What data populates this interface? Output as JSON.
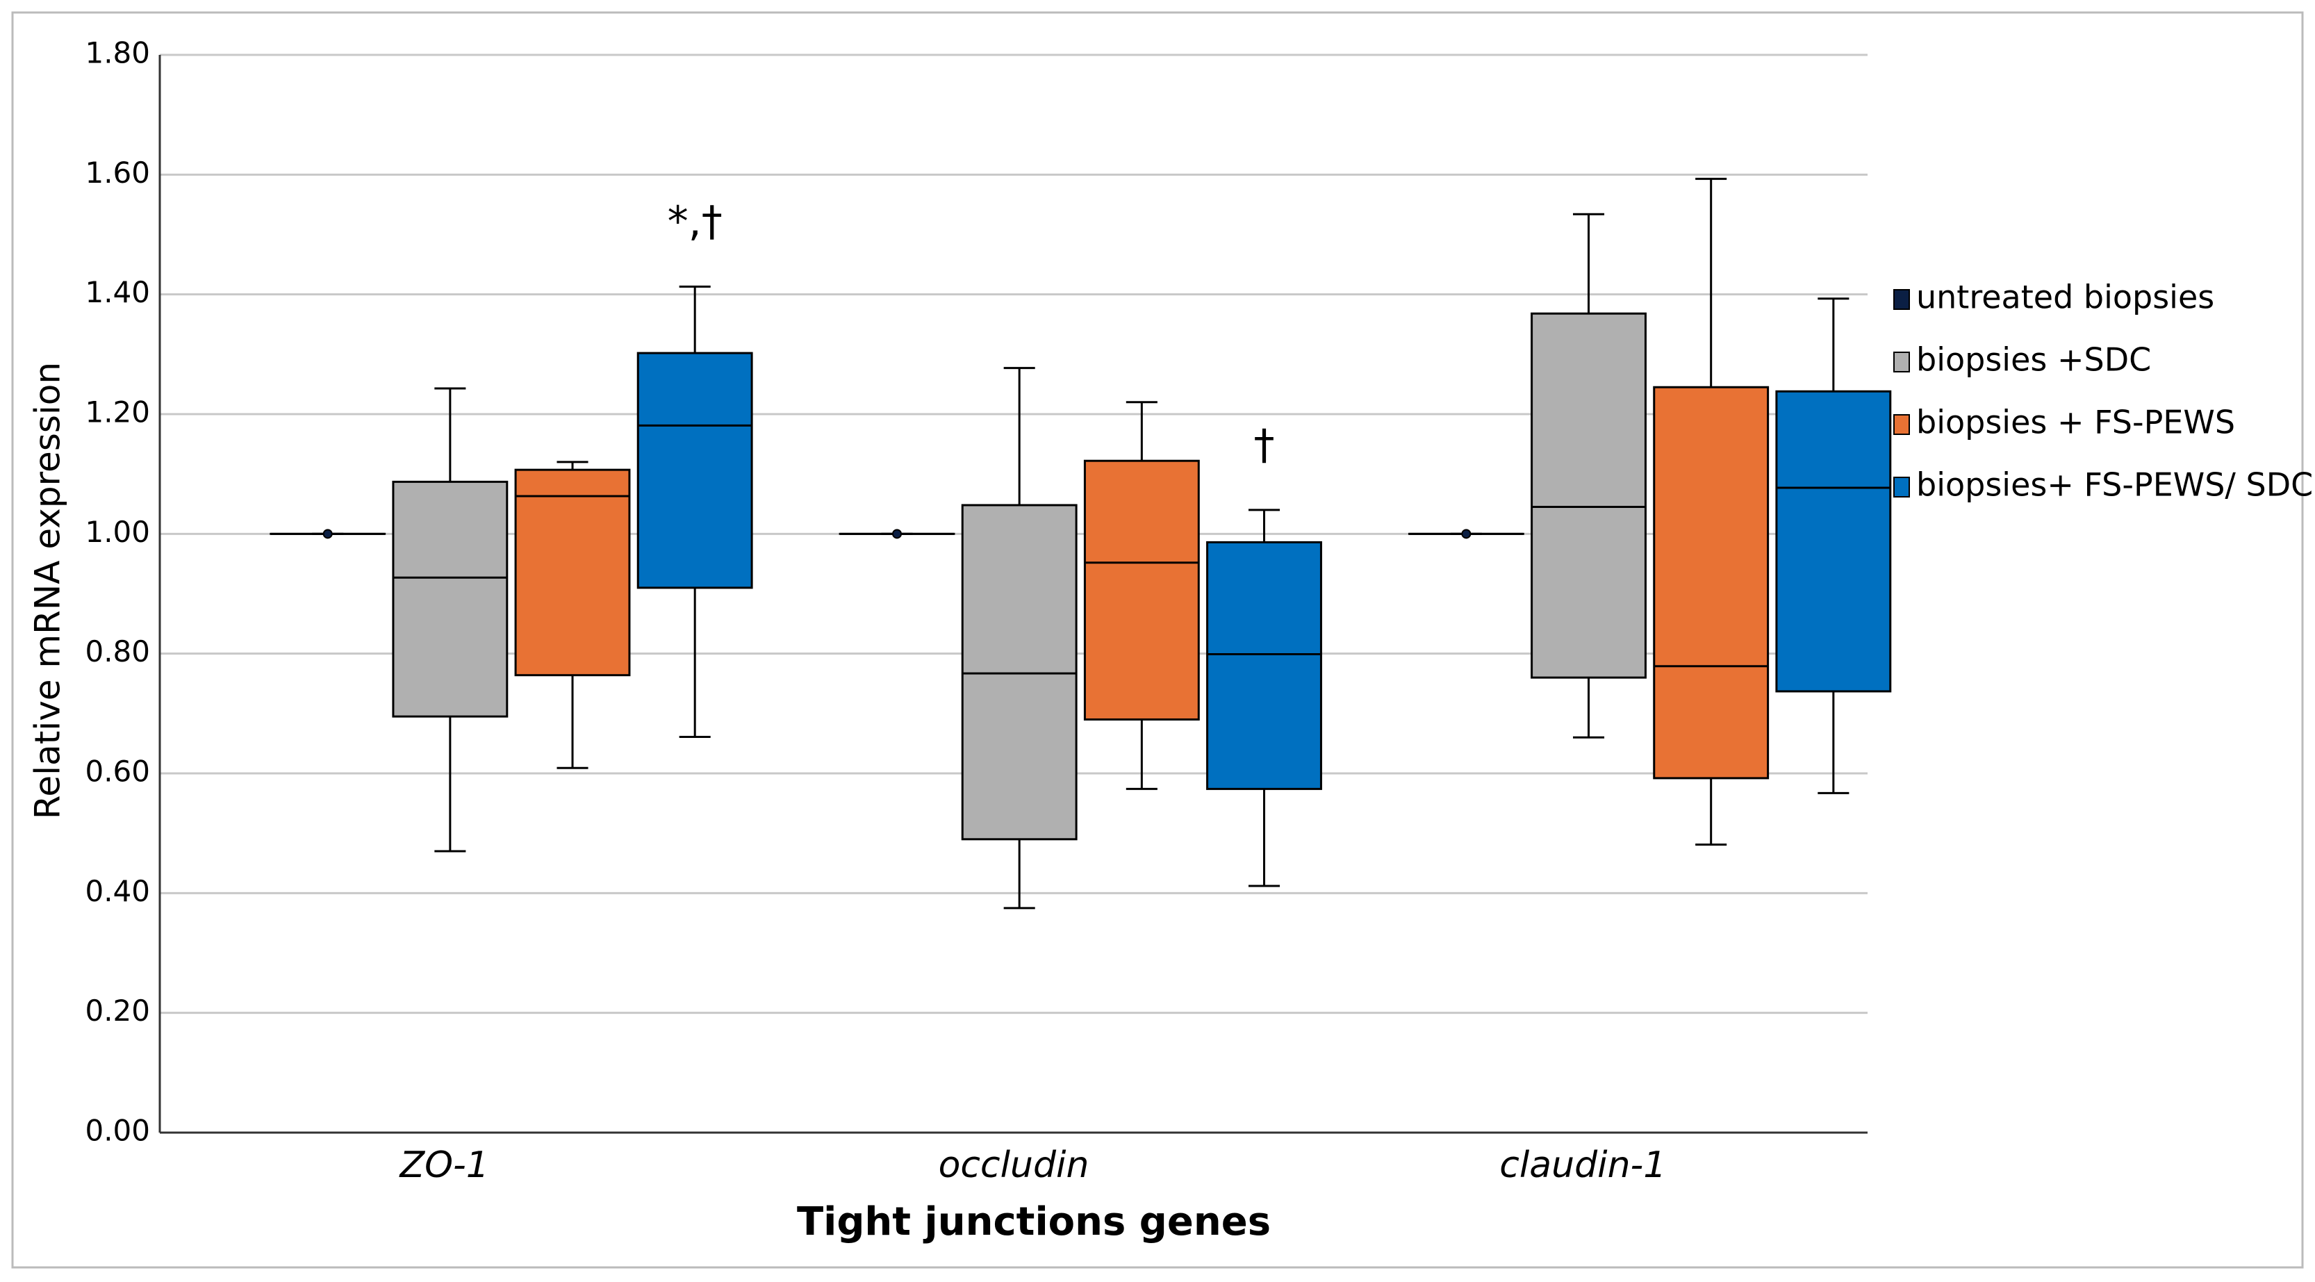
{
  "chart_data": {
    "type": "box",
    "xlabel": "Tight junctions genes",
    "ylabel": "Relative mRNA expression",
    "categories": [
      "ZO-1",
      "occludin",
      "claudin-1"
    ],
    "ylim": [
      0,
      1.8
    ],
    "yticks": [
      {
        "value": 0,
        "label": "0.00"
      },
      {
        "value": 0.2,
        "label": "0.20"
      },
      {
        "value": 0.4,
        "label": "0.40"
      },
      {
        "value": 0.6,
        "label": "0.60"
      },
      {
        "value": 0.8,
        "label": "0.80"
      },
      {
        "value": 1,
        "label": "1.00"
      },
      {
        "value": 1.2,
        "label": "1.20"
      },
      {
        "value": 1.4,
        "label": "1.40"
      },
      {
        "value": 1.6,
        "label": "1.60"
      },
      {
        "value": 1.8,
        "label": "1.80"
      }
    ],
    "grid": true,
    "legend": "right",
    "series": [
      {
        "name": "untreated biopsies",
        "color": "#0b1f44",
        "min": [
          1.0,
          1.0,
          1.0
        ],
        "q1": [
          1.0,
          1.0,
          1.0
        ],
        "median": [
          1.0,
          1.0,
          1.0
        ],
        "q3": [
          1.0,
          1.0,
          1.0
        ],
        "max": [
          1.0,
          1.0,
          1.0
        ]
      },
      {
        "name": "biopsies +SDC",
        "color": "#b0b0b0",
        "min": [
          0.47,
          0.375,
          0.66
        ],
        "q1": [
          0.695,
          0.49,
          0.76
        ],
        "median": [
          0.927,
          0.767,
          1.045
        ],
        "q3": [
          1.087,
          1.048,
          1.368
        ],
        "max": [
          1.243,
          1.277,
          1.534
        ]
      },
      {
        "name": "biopsies + FS-PEWS",
        "color": "#e87234",
        "min": [
          0.609,
          0.574,
          0.481
        ],
        "q1": [
          0.764,
          0.69,
          0.592
        ],
        "median": [
          1.063,
          0.952,
          0.779
        ],
        "q3": [
          1.107,
          1.122,
          1.245
        ],
        "max": [
          1.12,
          1.22,
          1.593
        ]
      },
      {
        "name": "biopsies+ FS-PEWS/ SDC",
        "color": "#0070c0",
        "min": [
          0.661,
          0.412,
          0.567
        ],
        "q1": [
          0.91,
          0.574,
          0.737
        ],
        "median": [
          1.181,
          0.799,
          1.077
        ],
        "q3": [
          1.302,
          0.986,
          1.238
        ],
        "max": [
          1.413,
          1.04,
          1.393
        ],
        "annotations": [
          "*,†",
          "†",
          null
        ]
      }
    ]
  }
}
